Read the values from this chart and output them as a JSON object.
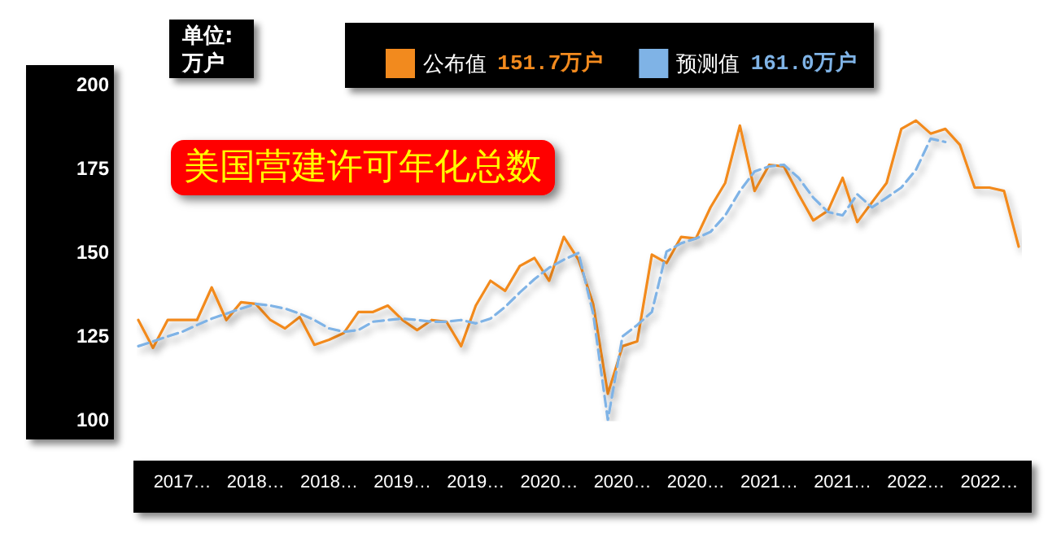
{
  "chart_data": {
    "type": "line",
    "title": "美国营建许可年化总数",
    "ylabel": "单位:万户",
    "categories": [
      null,
      null,
      null,
      "2017…",
      null,
      null,
      null,
      null,
      "2018…",
      null,
      null,
      null,
      null,
      "2018…",
      null,
      null,
      null,
      null,
      "2019…",
      null,
      null,
      null,
      null,
      "2019…",
      null,
      null,
      null,
      null,
      "2020…",
      null,
      null,
      null,
      null,
      "2020…",
      null,
      null,
      null,
      null,
      "2020…",
      null,
      null,
      null,
      null,
      "2021…",
      null,
      null,
      null,
      null,
      "2021…",
      null,
      null,
      null,
      null,
      "2022…",
      null,
      null,
      null,
      null,
      "2022…",
      null,
      null
    ],
    "series": [
      {
        "name": "公布值",
        "color": "#f28a1e",
        "line_style": "solid",
        "values": [
          129.8,
          121.5,
          129.8,
          129.8,
          129.8,
          139.5,
          129.8,
          135.1,
          134.6,
          129.8,
          127.3,
          130.7,
          122.4,
          123.9,
          125.9,
          132.2,
          132.2,
          134.1,
          129.8,
          126.8,
          129.8,
          129.3,
          122.0,
          134.1,
          141.5,
          138.5,
          145.9,
          148.3,
          141.5,
          154.6,
          147.8,
          134.6,
          107.8,
          122.0,
          123.4,
          149.3,
          146.8,
          154.6,
          154.1,
          163.4,
          170.7,
          187.8,
          168.3,
          176.1,
          175.6,
          167.3,
          159.5,
          162.4,
          172.2,
          159.0,
          164.9,
          170.7,
          186.8,
          189.3,
          185.4,
          186.8,
          182.0,
          169.3,
          169.3,
          168.3,
          151.7
        ]
      },
      {
        "name": "预测值",
        "color": "#7fb3e6",
        "line_style": "dashed",
        "values": [
          122.0,
          123.4,
          124.9,
          126.3,
          128.3,
          130.2,
          131.7,
          133.2,
          134.6,
          134.1,
          133.2,
          131.7,
          129.8,
          127.3,
          126.3,
          126.8,
          129.3,
          129.8,
          130.2,
          129.8,
          129.3,
          129.3,
          129.8,
          128.8,
          130.2,
          133.7,
          138.0,
          142.0,
          145.4,
          147.8,
          149.8,
          131.7,
          100.0,
          124.9,
          128.3,
          132.2,
          150.2,
          152.7,
          154.1,
          156.1,
          161.0,
          168.3,
          174.1,
          175.6,
          176.1,
          172.2,
          166.3,
          162.0,
          161.0,
          167.3,
          163.4,
          166.3,
          169.3,
          174.6,
          183.9,
          182.9,
          null,
          null,
          null,
          null,
          null
        ]
      }
    ],
    "annotations": [
      "151.7万户",
      "161.0万户"
    ],
    "ylim": [
      100,
      200
    ],
    "yticks": [
      100,
      125,
      150,
      175,
      200
    ],
    "grid": false,
    "legend": "top",
    "marker": "none"
  }
}
